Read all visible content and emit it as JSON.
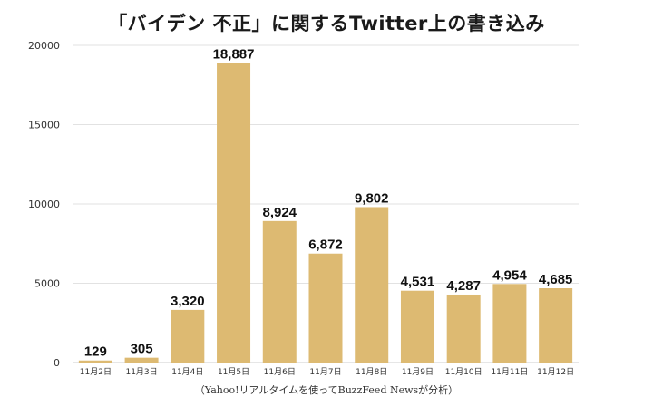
{
  "chart_data": {
    "type": "bar",
    "title": "「バイデン 不正」に関するTwitter上の書き込み",
    "source_note": "（Yahoo!リアルタイムを使ってBuzzFeed Newsが分析）",
    "categories": [
      "11月2日",
      "11月3日",
      "11月4日",
      "11月5日",
      "11月6日",
      "11月7日",
      "11月8日",
      "11月9日",
      "11月10日",
      "11月11日",
      "11月12日"
    ],
    "values": [
      129,
      305,
      3320,
      18887,
      8924,
      6872,
      9802,
      4531,
      4287,
      4954,
      4685
    ],
    "value_labels": [
      "129",
      "305",
      "3,320",
      "18,887",
      "8,924",
      "6,872",
      "9,802",
      "4,531",
      "4,287",
      "4,954",
      "4,685"
    ],
    "yticks": [
      "0",
      "5000",
      "10000",
      "15000",
      "20000"
    ],
    "ylim": [
      0,
      20000
    ],
    "xlabel": "",
    "ylabel": "",
    "grid": true,
    "legend": "none",
    "bar_color": "#DDBA72",
    "grid_color": "#E2E2E2"
  }
}
